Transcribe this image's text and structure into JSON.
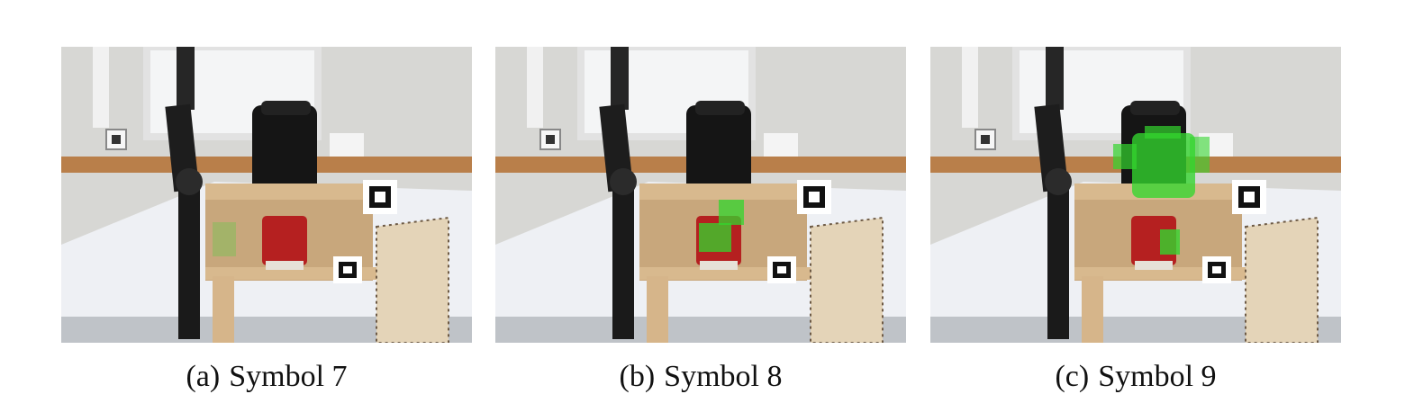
{
  "panels": [
    {
      "label": "(a)",
      "title": "Symbol 7"
    },
    {
      "label": "(b)",
      "title": "Symbol 8"
    },
    {
      "label": "(c)",
      "title": "Symbol 9"
    }
  ],
  "colors": {
    "highlight": "#33d62e",
    "wall": "#d7d7d4",
    "wood": "#c8a77c",
    "table": "#eef0f4",
    "machine": "#151515",
    "cup": "#b52020"
  },
  "icons": [
    "robot-arm-icon",
    "coffee-machine-icon",
    "red-cup-icon",
    "fiducial-marker-icon",
    "wooden-shelf-icon",
    "wall-window-icon"
  ]
}
